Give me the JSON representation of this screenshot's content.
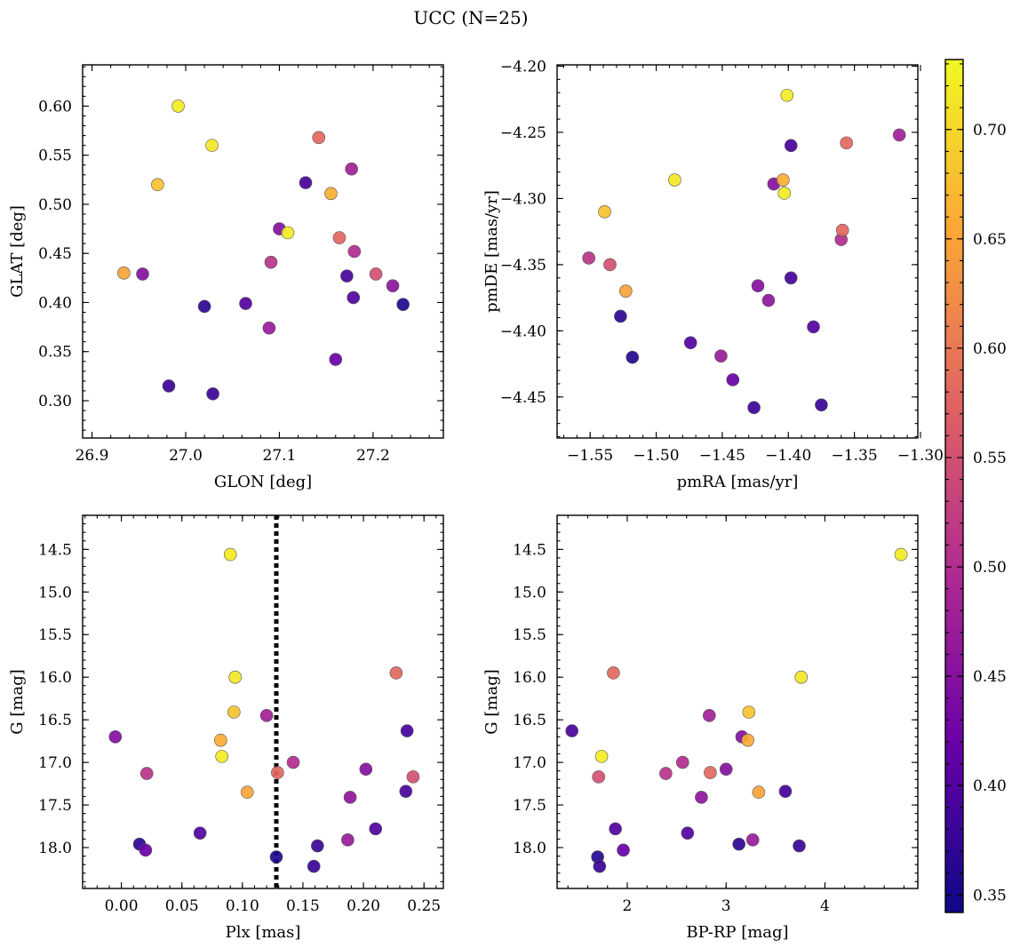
{
  "figure": {
    "title": "UCC (N=25)"
  },
  "colormap": {
    "name": "plasma",
    "stops": [
      "#0d0887",
      "#6a00a8",
      "#b12a90",
      "#e16462",
      "#fca636",
      "#f0f921"
    ]
  },
  "colorbar": {
    "min": 0.342,
    "max": 0.732,
    "ticks": [
      0.35,
      0.4,
      0.45,
      0.5,
      0.55,
      0.6,
      0.65,
      0.7
    ],
    "tick_labels": [
      "0.35",
      "0.40",
      "0.45",
      "0.50",
      "0.55",
      "0.60",
      "0.65",
      "0.70"
    ]
  },
  "members": {
    "glon": [
      26.992,
      27.028,
      26.97,
      27.142,
      27.177,
      27.128,
      27.155,
      27.1,
      27.109,
      27.164,
      27.18,
      27.091,
      27.203,
      26.934,
      26.954,
      27.172,
      27.221,
      27.02,
      27.064,
      27.179,
      27.232,
      27.089,
      27.16,
      26.982,
      27.029
    ],
    "glat": [
      0.6,
      0.56,
      0.52,
      0.568,
      0.536,
      0.522,
      0.511,
      0.475,
      0.471,
      0.466,
      0.452,
      0.441,
      0.429,
      0.43,
      0.429,
      0.427,
      0.417,
      0.396,
      0.399,
      0.405,
      0.398,
      0.374,
      0.342,
      0.315,
      0.307
    ],
    "pmra": [
      -1.401,
      -1.486,
      -1.539,
      -1.356,
      -1.316,
      -1.398,
      -1.404,
      -1.411,
      -1.403,
      -1.359,
      -1.36,
      -1.551,
      -1.535,
      -1.523,
      -1.423,
      -1.398,
      -1.415,
      -1.527,
      -1.474,
      -1.381,
      -1.518,
      -1.451,
      -1.442,
      -1.426,
      -1.375
    ],
    "pmde": [
      -4.222,
      -4.286,
      -4.31,
      -4.258,
      -4.252,
      -4.26,
      -4.286,
      -4.289,
      -4.296,
      -4.324,
      -4.331,
      -4.345,
      -4.35,
      -4.37,
      -4.366,
      -4.36,
      -4.377,
      -4.389,
      -4.409,
      -4.397,
      -4.42,
      -4.419,
      -4.437,
      -4.458,
      -4.456
    ],
    "plx": [
      0.09,
      0.094,
      0.093,
      0.227,
      0.12,
      0.236,
      0.082,
      -0.005,
      0.083,
      0.129,
      0.142,
      0.021,
      0.241,
      0.104,
      0.202,
      0.235,
      0.189,
      0.015,
      0.065,
      0.21,
      0.128,
      0.187,
      0.02,
      0.162,
      0.159
    ],
    "gmag": [
      14.56,
      16.0,
      16.41,
      15.95,
      16.45,
      16.63,
      16.74,
      16.7,
      16.93,
      17.12,
      17.0,
      17.13,
      17.17,
      17.35,
      17.08,
      17.34,
      17.41,
      17.96,
      17.83,
      17.78,
      18.11,
      17.91,
      18.03,
      17.98,
      18.22
    ],
    "bprp": [
      4.77,
      3.76,
      3.23,
      1.86,
      2.83,
      1.44,
      3.22,
      3.16,
      1.74,
      2.84,
      2.56,
      2.39,
      1.71,
      3.33,
      3.0,
      3.6,
      2.75,
      3.13,
      2.61,
      1.88,
      1.7,
      3.27,
      1.96,
      3.74,
      1.72
    ],
    "prob": [
      0.72,
      0.715,
      0.68,
      0.58,
      0.48,
      0.39,
      0.66,
      0.45,
      0.72,
      0.58,
      0.5,
      0.51,
      0.55,
      0.65,
      0.45,
      0.39,
      0.46,
      0.37,
      0.4,
      0.4,
      0.36,
      0.47,
      0.42,
      0.38,
      0.38
    ]
  },
  "chart_data": [
    {
      "type": "scatter",
      "panel": "top-left",
      "x_key": "glon",
      "y_key": "glat",
      "xlabel": "GLON [deg]",
      "ylabel": "GLAT [deg]",
      "xlim": [
        26.89,
        27.275
      ],
      "ylim": [
        0.262,
        0.642
      ],
      "x_ticks": [
        26.9,
        27.0,
        27.1,
        27.2
      ],
      "x_tick_labels": [
        "26.9",
        "27.0",
        "27.1",
        "27.2"
      ],
      "x_minor_step": 0.02,
      "y_ticks": [
        0.3,
        0.35,
        0.4,
        0.45,
        0.5,
        0.55,
        0.6
      ],
      "y_tick_labels": [
        "0.30",
        "0.35",
        "0.40",
        "0.45",
        "0.50",
        "0.55",
        "0.60"
      ],
      "y_minor_step": 0.01,
      "invert_y": false
    },
    {
      "type": "scatter",
      "panel": "top-right",
      "x_key": "pmra",
      "y_key": "pmde",
      "xlabel": "pmRA [mas/yr]",
      "ylabel": "pmDE [mas/yr]",
      "xlim": [
        -1.575,
        -1.302
      ],
      "ylim": [
        -4.481,
        -4.199
      ],
      "x_ticks": [
        -1.55,
        -1.5,
        -1.45,
        -1.4,
        -1.35,
        -1.3
      ],
      "x_tick_labels": [
        "−1.55",
        "−1.50",
        "−1.45",
        "−1.40",
        "−1.35",
        "−1.30"
      ],
      "x_minor_step": 0.01,
      "y_ticks": [
        -4.45,
        -4.4,
        -4.35,
        -4.3,
        -4.25,
        -4.2
      ],
      "y_tick_labels": [
        "−4.45",
        "−4.40",
        "−4.35",
        "−4.30",
        "−4.25",
        "−4.20"
      ],
      "y_minor_step": 0.01,
      "invert_y": false
    },
    {
      "type": "scatter",
      "panel": "bottom-left",
      "x_key": "plx",
      "y_key": "gmag",
      "xlabel": "Plx [mas]",
      "ylabel": "G [mag]",
      "xlim": [
        -0.032,
        0.266
      ],
      "ylim": [
        14.1,
        18.48
      ],
      "x_ticks": [
        0.0,
        0.05,
        0.1,
        0.15,
        0.2,
        0.25
      ],
      "x_tick_labels": [
        "0.00",
        "0.05",
        "0.10",
        "0.15",
        "0.20",
        "0.25"
      ],
      "x_minor_step": 0.01,
      "y_ticks": [
        14.5,
        15.0,
        15.5,
        16.0,
        16.5,
        17.0,
        17.5,
        18.0
      ],
      "y_tick_labels": [
        "14.5",
        "15.0",
        "15.5",
        "16.0",
        "16.5",
        "17.0",
        "17.5",
        "18.0"
      ],
      "y_minor_step": 0.1,
      "invert_y": true,
      "vline": {
        "x": 0.128,
        "style": "dotted",
        "color": "#000000"
      }
    },
    {
      "type": "scatter",
      "panel": "bottom-right",
      "x_key": "bprp",
      "y_key": "gmag",
      "xlabel": "BP-RP [mag]",
      "ylabel": "G [mag]",
      "xlim": [
        1.29,
        4.94
      ],
      "ylim": [
        14.1,
        18.48
      ],
      "x_ticks": [
        2,
        3,
        4
      ],
      "x_tick_labels": [
        "2",
        "3",
        "4"
      ],
      "x_minor_step": 0.2,
      "y_ticks": [
        14.5,
        15.0,
        15.5,
        16.0,
        16.5,
        17.0,
        17.5,
        18.0
      ],
      "y_tick_labels": [
        "14.5",
        "15.0",
        "15.5",
        "16.0",
        "16.5",
        "17.0",
        "17.5",
        "18.0"
      ],
      "y_minor_step": 0.1,
      "invert_y": true
    }
  ]
}
